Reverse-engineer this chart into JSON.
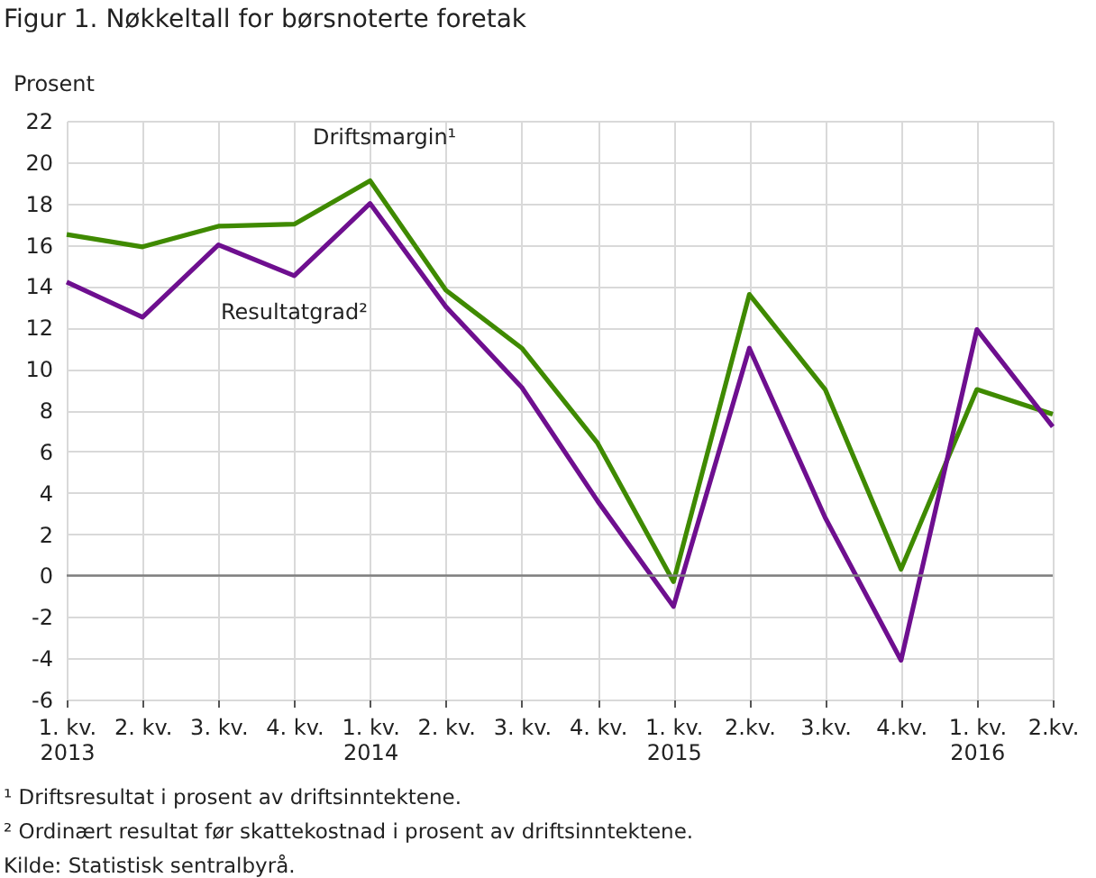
{
  "chart_data": {
    "type": "line",
    "title": "Figur 1. Nøkkeltall for børsnoterte foretak",
    "ylabel": "Prosent",
    "categories": [
      "1. kv.\n2013",
      "2. kv.",
      "3. kv.",
      "4. kv.",
      "1. kv.\n2014",
      "2. kv.",
      "3. kv.",
      "4. kv.",
      "1. kv.\n2015",
      "2.kv.",
      "3.kv.",
      "4.kv.",
      "1. kv.\n2016",
      "2.kv."
    ],
    "series": [
      {
        "name": "Driftsmargin¹",
        "color": "#3f8a00",
        "values": [
          16.5,
          15.9,
          16.9,
          17.0,
          19.1,
          13.8,
          11.0,
          6.4,
          -0.3,
          13.6,
          9.0,
          0.3,
          9.0,
          7.8
        ]
      },
      {
        "name": "Resultatgrad²",
        "color": "#6e0f8f",
        "values": [
          14.2,
          12.5,
          16.0,
          14.5,
          18.0,
          13.0,
          9.1,
          3.6,
          -1.5,
          11.0,
          2.8,
          -4.1,
          11.9,
          7.2
        ]
      }
    ],
    "ylim": [
      -6,
      22
    ],
    "yticks": [
      -6,
      -4,
      -2,
      0,
      2,
      4,
      6,
      8,
      10,
      12,
      14,
      16,
      18,
      20,
      22
    ],
    "grid": true,
    "legend": false,
    "marker": "none",
    "line_style": "solid",
    "ref_lines": [
      {
        "axis": "y",
        "value": 0,
        "color": "#7f7f7f"
      }
    ],
    "annotations": [
      "¹ Driftsresultat i prosent av driftsinntektene.",
      "² Ordinært resultat før skattekostnad i prosent av driftsinntektene.",
      "Kilde: Statistisk sentralbyrå."
    ]
  }
}
